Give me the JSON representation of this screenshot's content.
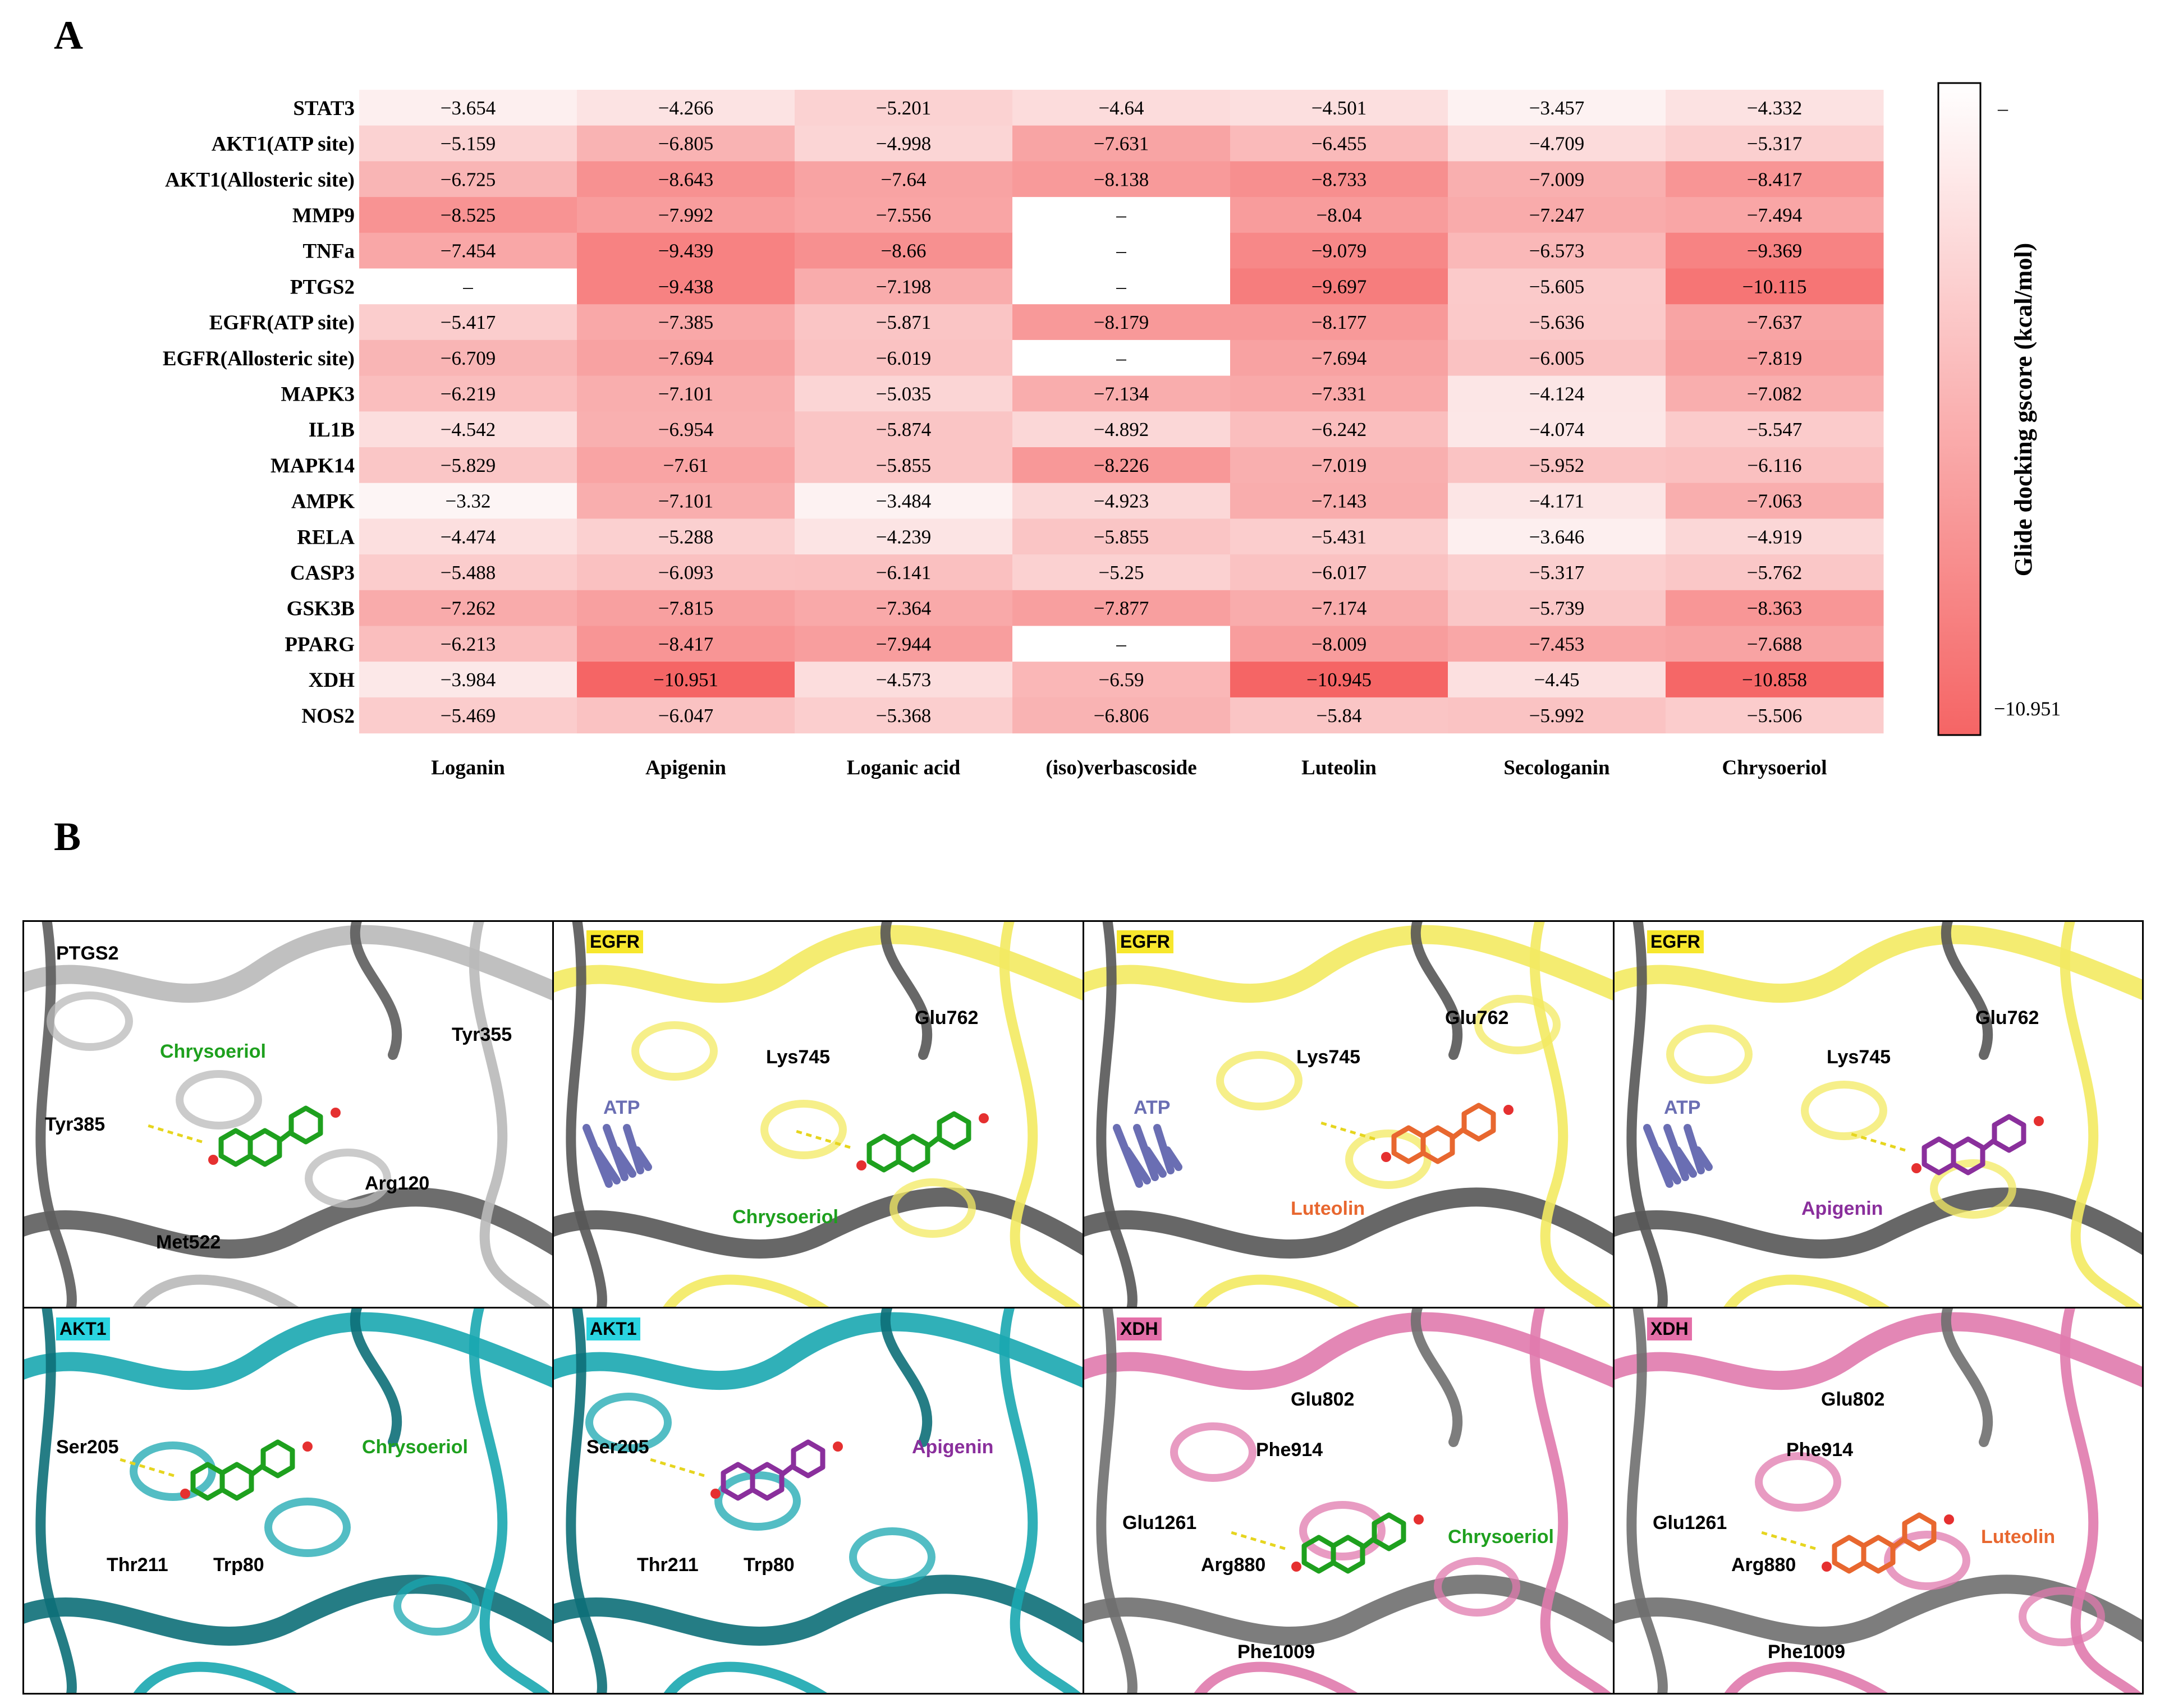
{
  "panels": {
    "a": "A",
    "b": "B"
  },
  "colors": {
    "low": "#fdf5f5",
    "high": "#f56565",
    "nan": "#ffffff",
    "chrysoeriol": "#1ea01e",
    "luteolin": "#e8672f",
    "apigenin": "#8a2f9c",
    "atp": "#6a6eb3",
    "egfr_tag": "#f7e72d",
    "akt1_tag": "#2ad4e0",
    "xdh_tag": "#e46fa8"
  },
  "chart_data": {
    "type": "heatmap",
    "rows": [
      "STAT3",
      "AKT1(ATP site)",
      "AKT1(Allosteric site)",
      "MMP9",
      "TNFa",
      "PTGS2",
      "EGFR(ATP site)",
      "EGFR(Allosteric site)",
      "MAPK3",
      "IL1B",
      "MAPK14",
      "AMPK",
      "RELA",
      "CASP3",
      "GSK3B",
      "PPARG",
      "XDH",
      "NOS2"
    ],
    "columns": [
      "Loganin",
      "Apigenin",
      "Loganic acid",
      "(iso)verbascoside",
      "Luteolin",
      "Secologanin",
      "Chrysoeriol"
    ],
    "values": [
      [
        -3.654,
        -4.266,
        -5.201,
        -4.64,
        -4.501,
        -3.457,
        -4.332
      ],
      [
        -5.159,
        -6.805,
        -4.998,
        -7.631,
        -6.455,
        -4.709,
        -5.317
      ],
      [
        -6.725,
        -8.643,
        -7.64,
        -8.138,
        -8.733,
        -7.009,
        -8.417
      ],
      [
        -8.525,
        -7.992,
        -7.556,
        null,
        -8.04,
        -7.247,
        -7.494
      ],
      [
        -7.454,
        -9.439,
        -8.66,
        null,
        -9.079,
        -6.573,
        -9.369
      ],
      [
        null,
        -9.438,
        -7.198,
        null,
        -9.697,
        -5.605,
        -10.115
      ],
      [
        -5.417,
        -7.385,
        -5.871,
        -8.179,
        -8.177,
        -5.636,
        -7.637
      ],
      [
        -6.709,
        -7.694,
        -6.019,
        null,
        -7.694,
        -6.005,
        -7.819
      ],
      [
        -6.219,
        -7.101,
        -5.035,
        -7.134,
        -7.331,
        -4.124,
        -7.082
      ],
      [
        -4.542,
        -6.954,
        -5.874,
        -4.892,
        -6.242,
        -4.074,
        -5.547
      ],
      [
        -5.829,
        -7.61,
        -5.855,
        -8.226,
        -7.019,
        -5.952,
        -6.116
      ],
      [
        -3.32,
        -7.101,
        -3.484,
        -4.923,
        -7.143,
        -4.171,
        -7.063
      ],
      [
        -4.474,
        -5.288,
        -4.239,
        -5.855,
        -5.431,
        -3.646,
        -4.919
      ],
      [
        -5.488,
        -6.093,
        -6.141,
        -5.25,
        -6.017,
        -5.317,
        -5.762
      ],
      [
        -7.262,
        -7.815,
        -7.364,
        -7.877,
        -7.174,
        -5.739,
        -8.363
      ],
      [
        -6.213,
        -8.417,
        -7.944,
        null,
        -8.009,
        -7.453,
        -7.688
      ],
      [
        -3.984,
        -10.951,
        -4.573,
        -6.59,
        -10.945,
        -4.45,
        -10.858
      ],
      [
        -5.469,
        -6.047,
        -5.368,
        -6.806,
        -5.84,
        -5.992,
        -5.506
      ]
    ],
    "missing_label": "–",
    "colorbar": {
      "label": "Glide docking gscore (kcal/mol)",
      "tick_top": "–",
      "tick_bottom": "−10.951",
      "range": [
        -10.951,
        -3.32
      ]
    }
  },
  "tiles": [
    {
      "protein": "PTGS2",
      "theme": "gray",
      "labels": [
        {
          "text": "PTGS2",
          "kind": "residue"
        },
        {
          "text": "Chrysoeriol",
          "kind": "ligand",
          "color": "chrysoeriol"
        },
        {
          "text": "Tyr355",
          "kind": "residue"
        },
        {
          "text": "Tyr385",
          "kind": "residue"
        },
        {
          "text": "Arg120",
          "kind": "residue"
        },
        {
          "text": "Met522",
          "kind": "residue"
        }
      ]
    },
    {
      "protein": "EGFR",
      "theme": "yellow",
      "labels": [
        {
          "text": "Glu762",
          "kind": "residue"
        },
        {
          "text": "Lys745",
          "kind": "residue"
        },
        {
          "text": "ATP",
          "kind": "ligand",
          "color": "atp"
        },
        {
          "text": "Chrysoeriol",
          "kind": "ligand",
          "color": "chrysoeriol"
        }
      ]
    },
    {
      "protein": "EGFR",
      "theme": "yellow",
      "labels": [
        {
          "text": "Glu762",
          "kind": "residue"
        },
        {
          "text": "Lys745",
          "kind": "residue"
        },
        {
          "text": "ATP",
          "kind": "ligand",
          "color": "atp"
        },
        {
          "text": "Luteolin",
          "kind": "ligand",
          "color": "luteolin"
        }
      ]
    },
    {
      "protein": "EGFR",
      "theme": "yellow",
      "labels": [
        {
          "text": "Glu762",
          "kind": "residue"
        },
        {
          "text": "Lys745",
          "kind": "residue"
        },
        {
          "text": "ATP",
          "kind": "ligand",
          "color": "atp"
        },
        {
          "text": "Apigenin",
          "kind": "ligand",
          "color": "apigenin"
        }
      ]
    },
    {
      "protein": "AKT1",
      "theme": "teal",
      "labels": [
        {
          "text": "Ser205",
          "kind": "residue"
        },
        {
          "text": "Chrysoeriol",
          "kind": "ligand",
          "color": "chrysoeriol"
        },
        {
          "text": "Thr211",
          "kind": "residue"
        },
        {
          "text": "Trp80",
          "kind": "residue"
        }
      ]
    },
    {
      "protein": "AKT1",
      "theme": "teal",
      "labels": [
        {
          "text": "Ser205",
          "kind": "residue"
        },
        {
          "text": "Apigenin",
          "kind": "ligand",
          "color": "apigenin"
        },
        {
          "text": "Thr211",
          "kind": "residue"
        },
        {
          "text": "Trp80",
          "kind": "residue"
        }
      ]
    },
    {
      "protein": "XDH",
      "theme": "pink",
      "labels": [
        {
          "text": "Glu802",
          "kind": "residue"
        },
        {
          "text": "Phe914",
          "kind": "residue"
        },
        {
          "text": "Glu1261",
          "kind": "residue"
        },
        {
          "text": "Arg880",
          "kind": "residue"
        },
        {
          "text": "Chrysoeriol",
          "kind": "ligand",
          "color": "chrysoeriol"
        },
        {
          "text": "Phe1009",
          "kind": "residue"
        }
      ]
    },
    {
      "protein": "XDH",
      "theme": "pink",
      "labels": [
        {
          "text": "Glu802",
          "kind": "residue"
        },
        {
          "text": "Phe914",
          "kind": "residue"
        },
        {
          "text": "Glu1261",
          "kind": "residue"
        },
        {
          "text": "Arg880",
          "kind": "residue"
        },
        {
          "text": "Luteolin",
          "kind": "ligand",
          "color": "luteolin"
        },
        {
          "text": "Phe1009",
          "kind": "residue"
        }
      ]
    }
  ]
}
